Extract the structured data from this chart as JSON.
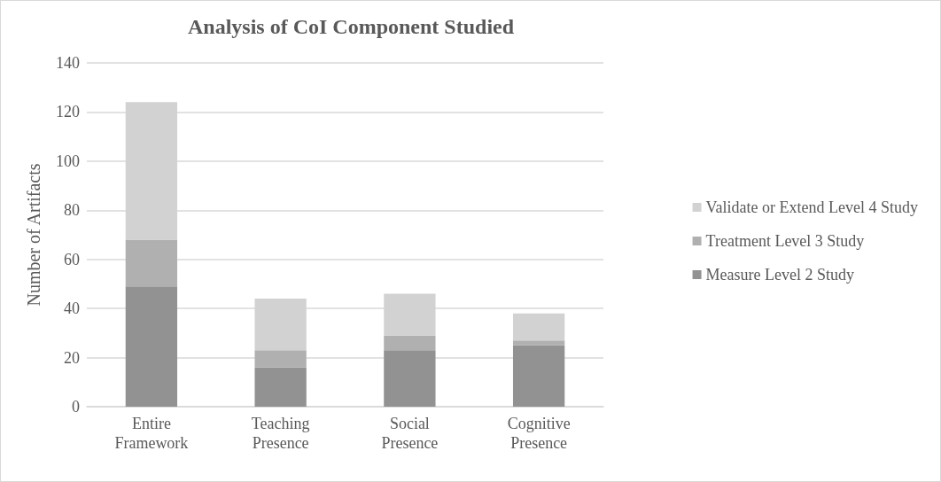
{
  "chart_data": {
    "type": "bar",
    "title": "Analysis of CoI Component Studied",
    "ylabel": "Number of Artifacts",
    "categories": [
      "Entire Framework",
      "Teaching Presence",
      "Social Presence",
      "Cognitive Presence"
    ],
    "stacked": true,
    "series": [
      {
        "name": "Measure Level 2 Study",
        "color": "#929292",
        "values": [
          49,
          16,
          23,
          25
        ]
      },
      {
        "name": "Treatment Level 3 Study",
        "color": "#b0b0b0",
        "values": [
          19,
          7,
          6,
          2
        ]
      },
      {
        "name": "Validate or Extend Level 4 Study",
        "color": "#d2d2d2",
        "values": [
          56,
          21,
          17,
          11
        ]
      }
    ],
    "ylim": [
      0,
      140
    ],
    "yticks": [
      0,
      20,
      40,
      60,
      80,
      100,
      120,
      140
    ],
    "grid": "y",
    "legend": "right"
  }
}
